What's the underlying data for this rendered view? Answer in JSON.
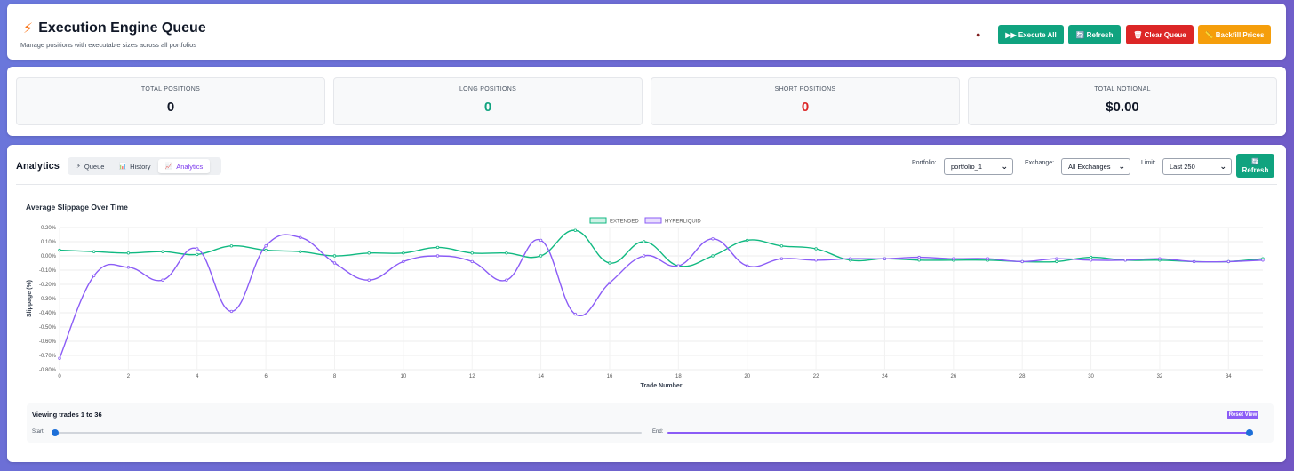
{
  "header": {
    "title": "Execution Engine Queue",
    "subtitle": "Manage positions with executable sizes across all portfolios",
    "buttons": {
      "execute_all": "▶▶ Execute All",
      "refresh": "🔄 Refresh",
      "clear_queue": "🗑 Clear Queue",
      "backfill": "📏 Backfill Prices"
    }
  },
  "stats": [
    {
      "label": "TOTAL POSITIONS",
      "value": "0",
      "color": "#111827"
    },
    {
      "label": "LONG POSITIONS",
      "value": "0",
      "color": "#10a37f"
    },
    {
      "label": "SHORT POSITIONS",
      "value": "0",
      "color": "#dc2626"
    },
    {
      "label": "TOTAL NOTIONAL",
      "value": "$0.00",
      "color": "#111827"
    }
  ],
  "analytics": {
    "title": "Analytics",
    "tabs": [
      {
        "label": "Queue",
        "icon": "⚡"
      },
      {
        "label": "History",
        "icon": "📊"
      },
      {
        "label": "Analytics",
        "icon": "📈"
      }
    ],
    "filters": {
      "portfolio_label": "Portfolio:",
      "portfolio_value": "portfolio_1",
      "exchange_label": "Exchange:",
      "exchange_value": "All Exchanges",
      "limit_label": "Limit:",
      "limit_value": "Last 250",
      "refresh_label": "Refresh",
      "refresh_icon": "🔄"
    },
    "range": {
      "title": "Viewing trades 1 to 36",
      "reset_label": "Reset View",
      "start_label": "Start:",
      "end_label": "End:",
      "start_value": 1,
      "end_value": 36,
      "total": 36
    }
  },
  "chart_data": {
    "type": "line",
    "title": "Average Slippage Over Time",
    "xlabel": "Trade Number",
    "ylabel": "Slippage (%)",
    "xlim": [
      0,
      35
    ],
    "ylim": [
      -0.8,
      0.2
    ],
    "x_ticks": [
      0,
      2,
      4,
      6,
      8,
      10,
      12,
      14,
      16,
      18,
      20,
      22,
      24,
      26,
      28,
      30,
      32,
      34
    ],
    "y_ticks": [
      "0.20%",
      "0.10%",
      "0.00%",
      "-0.10%",
      "-0.20%",
      "-0.30%",
      "-0.40%",
      "-0.50%",
      "-0.60%",
      "-0.70%",
      "-0.80%"
    ],
    "legend_position": "top-center",
    "series": [
      {
        "name": "EXTENDED",
        "color": "#10b981",
        "x": [
          0,
          1,
          2,
          3,
          4,
          5,
          6,
          7,
          8,
          9,
          10,
          11,
          12,
          13,
          14,
          15,
          16,
          17,
          18,
          19,
          20,
          21,
          22,
          23,
          24,
          25,
          26,
          27,
          28,
          29,
          30,
          31,
          32,
          33,
          34,
          35
        ],
        "values": [
          0.04,
          0.03,
          0.02,
          0.03,
          0.01,
          0.07,
          0.04,
          0.03,
          0.0,
          0.02,
          0.02,
          0.06,
          0.02,
          0.02,
          0.0,
          0.18,
          -0.05,
          0.1,
          -0.07,
          0.0,
          0.11,
          0.07,
          0.05,
          -0.03,
          -0.02,
          -0.03,
          -0.03,
          -0.03,
          -0.04,
          -0.04,
          -0.01,
          -0.03,
          -0.03,
          -0.04,
          -0.04,
          -0.02
        ]
      },
      {
        "name": "HYPERLIQUID",
        "color": "#8b5cf6",
        "x": [
          0,
          1,
          2,
          3,
          4,
          5,
          6,
          7,
          8,
          9,
          10,
          11,
          12,
          13,
          14,
          15,
          16,
          17,
          18,
          19,
          20,
          21,
          22,
          23,
          24,
          25,
          26,
          27,
          28,
          29,
          30,
          31,
          32,
          33,
          34,
          35
        ],
        "values": [
          -0.72,
          -0.14,
          -0.08,
          -0.17,
          0.05,
          -0.39,
          0.07,
          0.13,
          -0.05,
          -0.17,
          -0.04,
          0.0,
          -0.04,
          -0.17,
          0.11,
          -0.41,
          -0.19,
          0.0,
          -0.07,
          0.12,
          -0.07,
          -0.02,
          -0.03,
          -0.02,
          -0.02,
          -0.01,
          -0.02,
          -0.02,
          -0.04,
          -0.02,
          -0.03,
          -0.03,
          -0.02,
          -0.04,
          -0.04,
          -0.03
        ]
      }
    ]
  }
}
